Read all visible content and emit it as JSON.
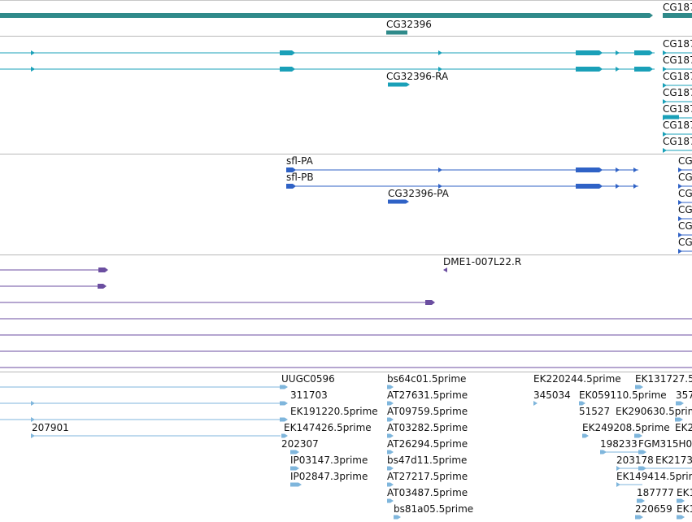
{
  "colors": {
    "gene_span": "#2f8a8a",
    "transcript": "#1aa0b8",
    "protein": "#2f62c6",
    "clone": "#6b4ea0",
    "est": "#7fb6dc",
    "separator": "#b8b8b8"
  },
  "tracks": {
    "gene_span": {
      "labels": [
        "CG187",
        "CG32396"
      ]
    },
    "transcripts": {
      "labels": [
        "CG32396-RA",
        "CG187",
        "CG187",
        "CG187",
        "CG187",
        "CG187",
        "CG187",
        "CG187"
      ]
    },
    "proteins": {
      "labels": [
        "sfl-PA",
        "sfl-PB",
        "CG32396-PA",
        "CG",
        "CG",
        "CG",
        "CG",
        "CG",
        "CG"
      ]
    },
    "clones": {
      "labels": [
        "DME1-007L22.R"
      ]
    },
    "ests": {
      "labels": [
        "UUGC0596",
        "311703",
        "EK191220.5prime",
        "EK147426.5prime",
        "202307",
        "IP03147.3prime",
        "IP02847.3prime",
        "207901",
        "bs64c01.5prime",
        "AT27631.5prime",
        "AT09759.5prime",
        "AT03282.5prime",
        "AT26294.5prime",
        "bs47d11.5prime",
        "AT27217.5prime",
        "AT03487.5prime",
        "bs81a05.5prime",
        "EK220244.5prime",
        "345034",
        "EK059110.5prime",
        "51527",
        "EK290630.5prime",
        "EK249208.5prime",
        "198233",
        "FGM315H0",
        "203178",
        "EK2173",
        "EK149414.5prime",
        "187777",
        "EK1",
        "220659",
        "EK1",
        "EK131727.5",
        "357",
        "EK2"
      ]
    }
  }
}
